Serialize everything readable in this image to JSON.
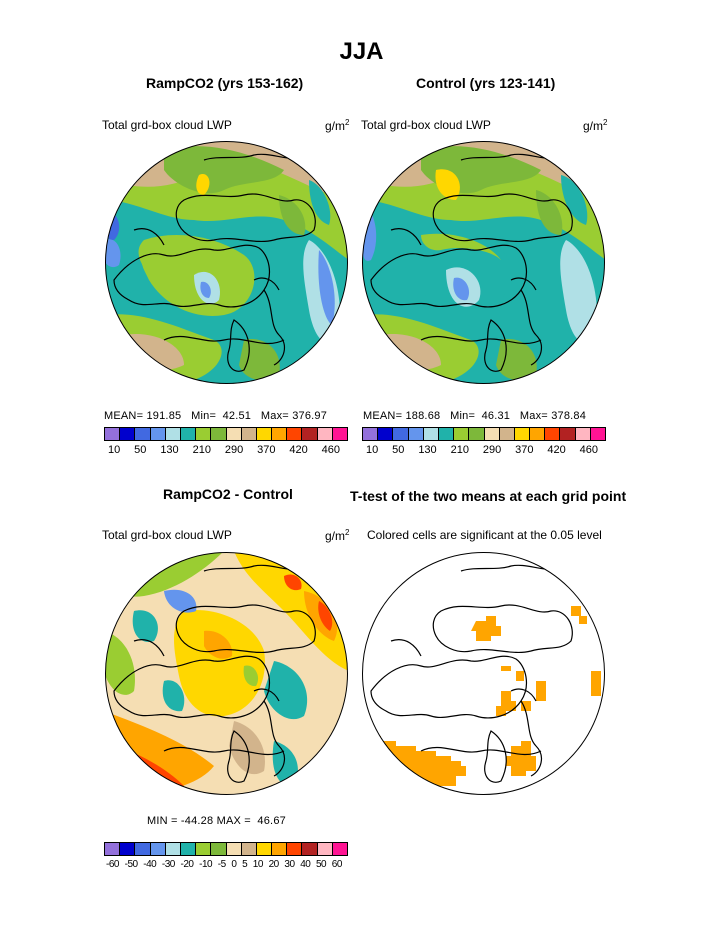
{
  "page_title": "JJA",
  "panels": {
    "top_left": {
      "title": "RampCO2 (yrs 153-162)",
      "left_label": "Total grd-box cloud LWP",
      "units": "g/m",
      "units_exp": "2",
      "stats": {
        "mean_label": "MEAN=",
        "mean": "191.85",
        "min_label": "Min=",
        "min": "42.51",
        "max_label": "Max=",
        "max": "376.97"
      }
    },
    "top_right": {
      "title": "Control (yrs 123-141)",
      "left_label": "Total grd-box cloud LWP",
      "units": "g/m",
      "units_exp": "2",
      "stats": {
        "mean_label": "MEAN=",
        "mean": "188.68",
        "min_label": "Min=",
        "min": "46.31",
        "max_label": "Max=",
        "max": "378.84"
      }
    },
    "bottom_left": {
      "title": "RampCO2 - Control",
      "left_label": "Total grd-box cloud LWP",
      "units": "g/m",
      "units_exp": "2",
      "stats": {
        "min_label": "MIN =",
        "min": "-44.28",
        "max_label": "MAX =",
        "max": "46.67"
      }
    },
    "bottom_right": {
      "title": "T-test of the two means at each grid point",
      "left_label": "Colored cells are significant at the 0.05 level"
    }
  },
  "colorbars": {
    "lwp": {
      "colors": [
        "#9370DB",
        "#0000CD",
        "#4169E1",
        "#6495ED",
        "#B0E0E6",
        "#20B2AA",
        "#9ACD32",
        "#7DB83A",
        "#F5DEB3",
        "#D2B48C",
        "#FFD700",
        "#FFA500",
        "#FF4500",
        "#B22222",
        "#FFB6C1",
        "#FF1493"
      ],
      "tick_labels": [
        "10",
        "50",
        "130",
        "210",
        "290",
        "370",
        "420",
        "460"
      ]
    },
    "diff": {
      "colors": [
        "#9370DB",
        "#0000CD",
        "#4169E1",
        "#6495ED",
        "#B0E0E6",
        "#20B2AA",
        "#9ACD32",
        "#7DB83A",
        "#F5DEB3",
        "#D2B48C",
        "#FFD700",
        "#FFA500",
        "#FF4500",
        "#B22222",
        "#FFB6C1",
        "#FF1493"
      ],
      "tick_labels": [
        "-60",
        "-50",
        "-40",
        "-30",
        "-20",
        "-10",
        "-5",
        "0",
        "5",
        "10",
        "20",
        "30",
        "40",
        "50",
        "60"
      ]
    }
  }
}
